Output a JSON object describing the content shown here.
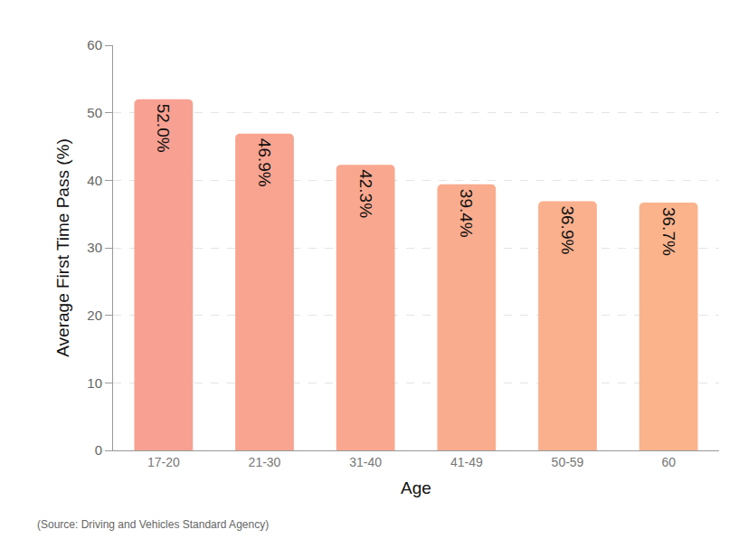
{
  "chart_data": {
    "type": "bar",
    "categories": [
      "17-20",
      "21-30",
      "31-40",
      "41-49",
      "50-59",
      "60"
    ],
    "values": [
      52.0,
      46.9,
      42.3,
      39.4,
      36.9,
      36.7
    ],
    "value_labels": [
      "52.0%",
      "46.9%",
      "42.3%",
      "39.4%",
      "36.9%",
      "36.7%"
    ],
    "colors": [
      "#f8a092",
      "#f9a491",
      "#f9a88f",
      "#faac8e",
      "#fab08d",
      "#fbb38c"
    ],
    "x_label": "Age",
    "y_label": "Average First Time Pass (%)",
    "source": "(Source: Driving and Vehicles Standard Agency)",
    "ylim": [
      0,
      60
    ],
    "yticks": [
      0,
      10,
      20,
      30,
      40,
      50,
      60
    ],
    "grid": true,
    "data_labels": true
  }
}
